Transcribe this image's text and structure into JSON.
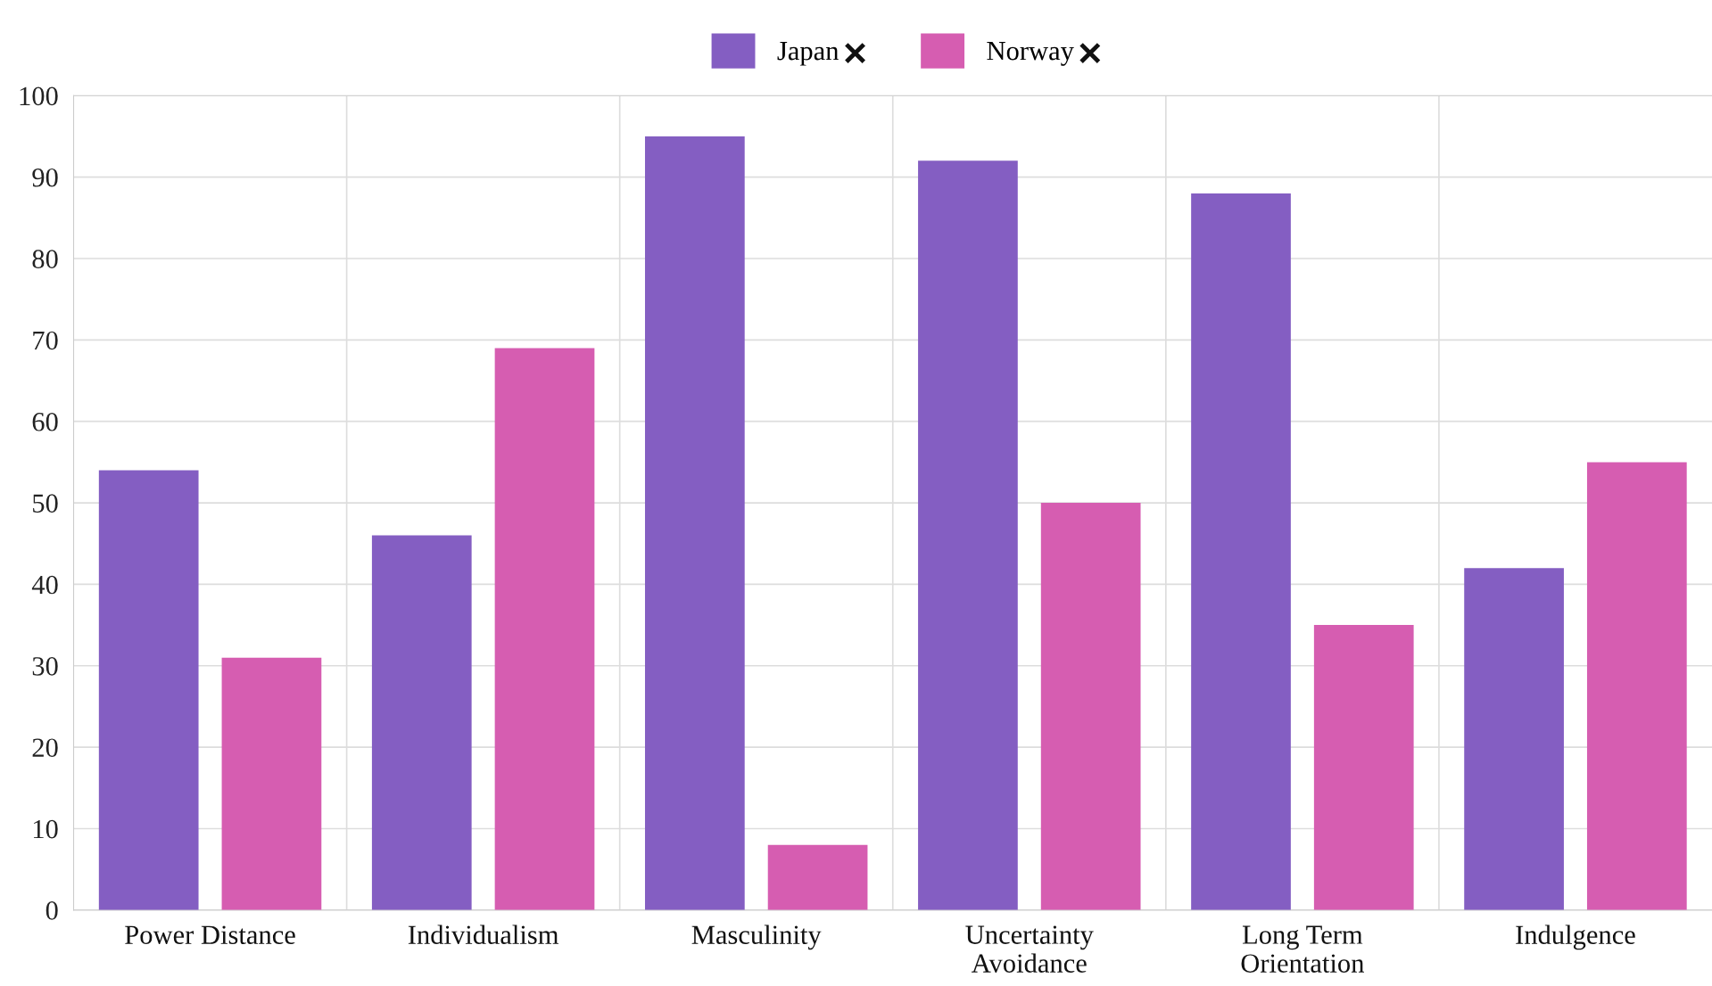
{
  "chart_data": {
    "type": "bar",
    "categories": [
      "Power Distance",
      "Individualism",
      "Masculinity",
      "Uncertainty Avoidance",
      "Long Term Orientation",
      "Indulgence"
    ],
    "series": [
      {
        "name": "Japan",
        "color": "#845ec2",
        "values": [
          54,
          46,
          95,
          92,
          88,
          42
        ]
      },
      {
        "name": "Norway",
        "color": "#d65db1",
        "values": [
          31,
          69,
          8,
          50,
          35,
          55
        ]
      }
    ],
    "ylim": [
      0,
      100
    ],
    "yticks": [
      0,
      10,
      20,
      30,
      40,
      50,
      60,
      70,
      80,
      90,
      100
    ],
    "grid": true,
    "legend": "top"
  }
}
